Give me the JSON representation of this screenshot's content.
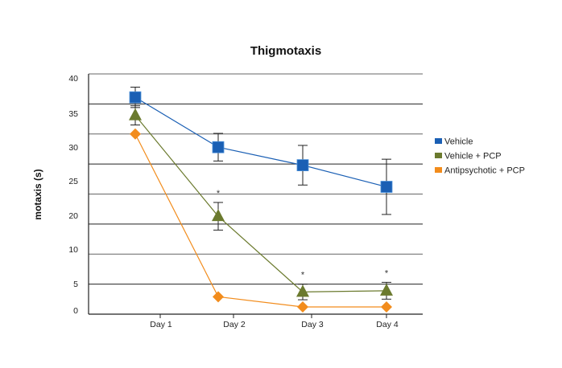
{
  "chart_data": {
    "type": "line",
    "title": "Thigmotaxis",
    "xlabel": "",
    "ylabel": "motaxis (s)",
    "categories": [
      "Day 1",
      "Day 2",
      "Day 3",
      "Day 4"
    ],
    "ytick_labels": [
      "40",
      "35",
      "30",
      "25",
      "20",
      "10",
      "5",
      "0"
    ],
    "ylim": [
      0,
      40
    ],
    "grid": true,
    "legend_position": "right",
    "series": [
      {
        "name": "Vehicle",
        "color": "#1a5fb4",
        "marker": "square",
        "values": [
          36.1,
          27.8,
          24.8,
          21.2
        ],
        "error": [
          1.7,
          2.3,
          3.3,
          4.6
        ]
      },
      {
        "name": "Vehicle + PCP",
        "color": "#6b7a2e",
        "marker": "triangle",
        "values": [
          33.1,
          16.3,
          3.7,
          3.9
        ],
        "error": [
          1.6,
          2.3,
          1.3,
          1.4
        ]
      },
      {
        "name": "Antipsychotic + PCP",
        "color": "#f28c1c",
        "marker": "diamond",
        "values": [
          30.0,
          2.9,
          1.2,
          1.2
        ],
        "error": null
      }
    ],
    "annotations": [
      {
        "text": "*",
        "category": "Day 2"
      },
      {
        "text": "*",
        "category": "Day 3"
      },
      {
        "text": "*",
        "category": "Day 4"
      }
    ]
  }
}
